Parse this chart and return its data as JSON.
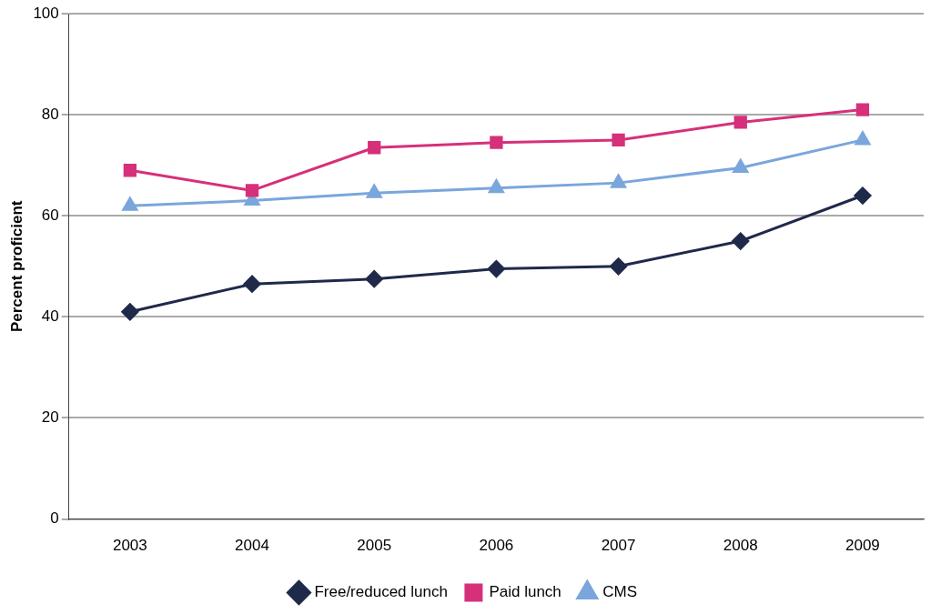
{
  "chart_data": {
    "type": "line",
    "ylabel": "Percent proficient",
    "categories": [
      "2003",
      "2004",
      "2005",
      "2006",
      "2007",
      "2008",
      "2009"
    ],
    "series": [
      {
        "name": "Free/reduced lunch",
        "color": "#1f2a4a",
        "marker": "diamond",
        "values": [
          41,
          46.5,
          47.5,
          49.5,
          50,
          55,
          64
        ]
      },
      {
        "name": "Paid lunch",
        "color": "#d6307a",
        "marker": "square",
        "values": [
          69,
          65,
          73.5,
          74.5,
          75,
          78.5,
          81
        ]
      },
      {
        "name": "CMS",
        "color": "#7aa6dc",
        "marker": "triangle",
        "values": [
          62,
          63,
          64.5,
          65.5,
          66.5,
          69.5,
          75
        ]
      }
    ],
    "ylim": [
      0,
      100
    ],
    "yticks": [
      0,
      20,
      40,
      60,
      80,
      100
    ],
    "grid": "y",
    "legend": "bottom"
  }
}
